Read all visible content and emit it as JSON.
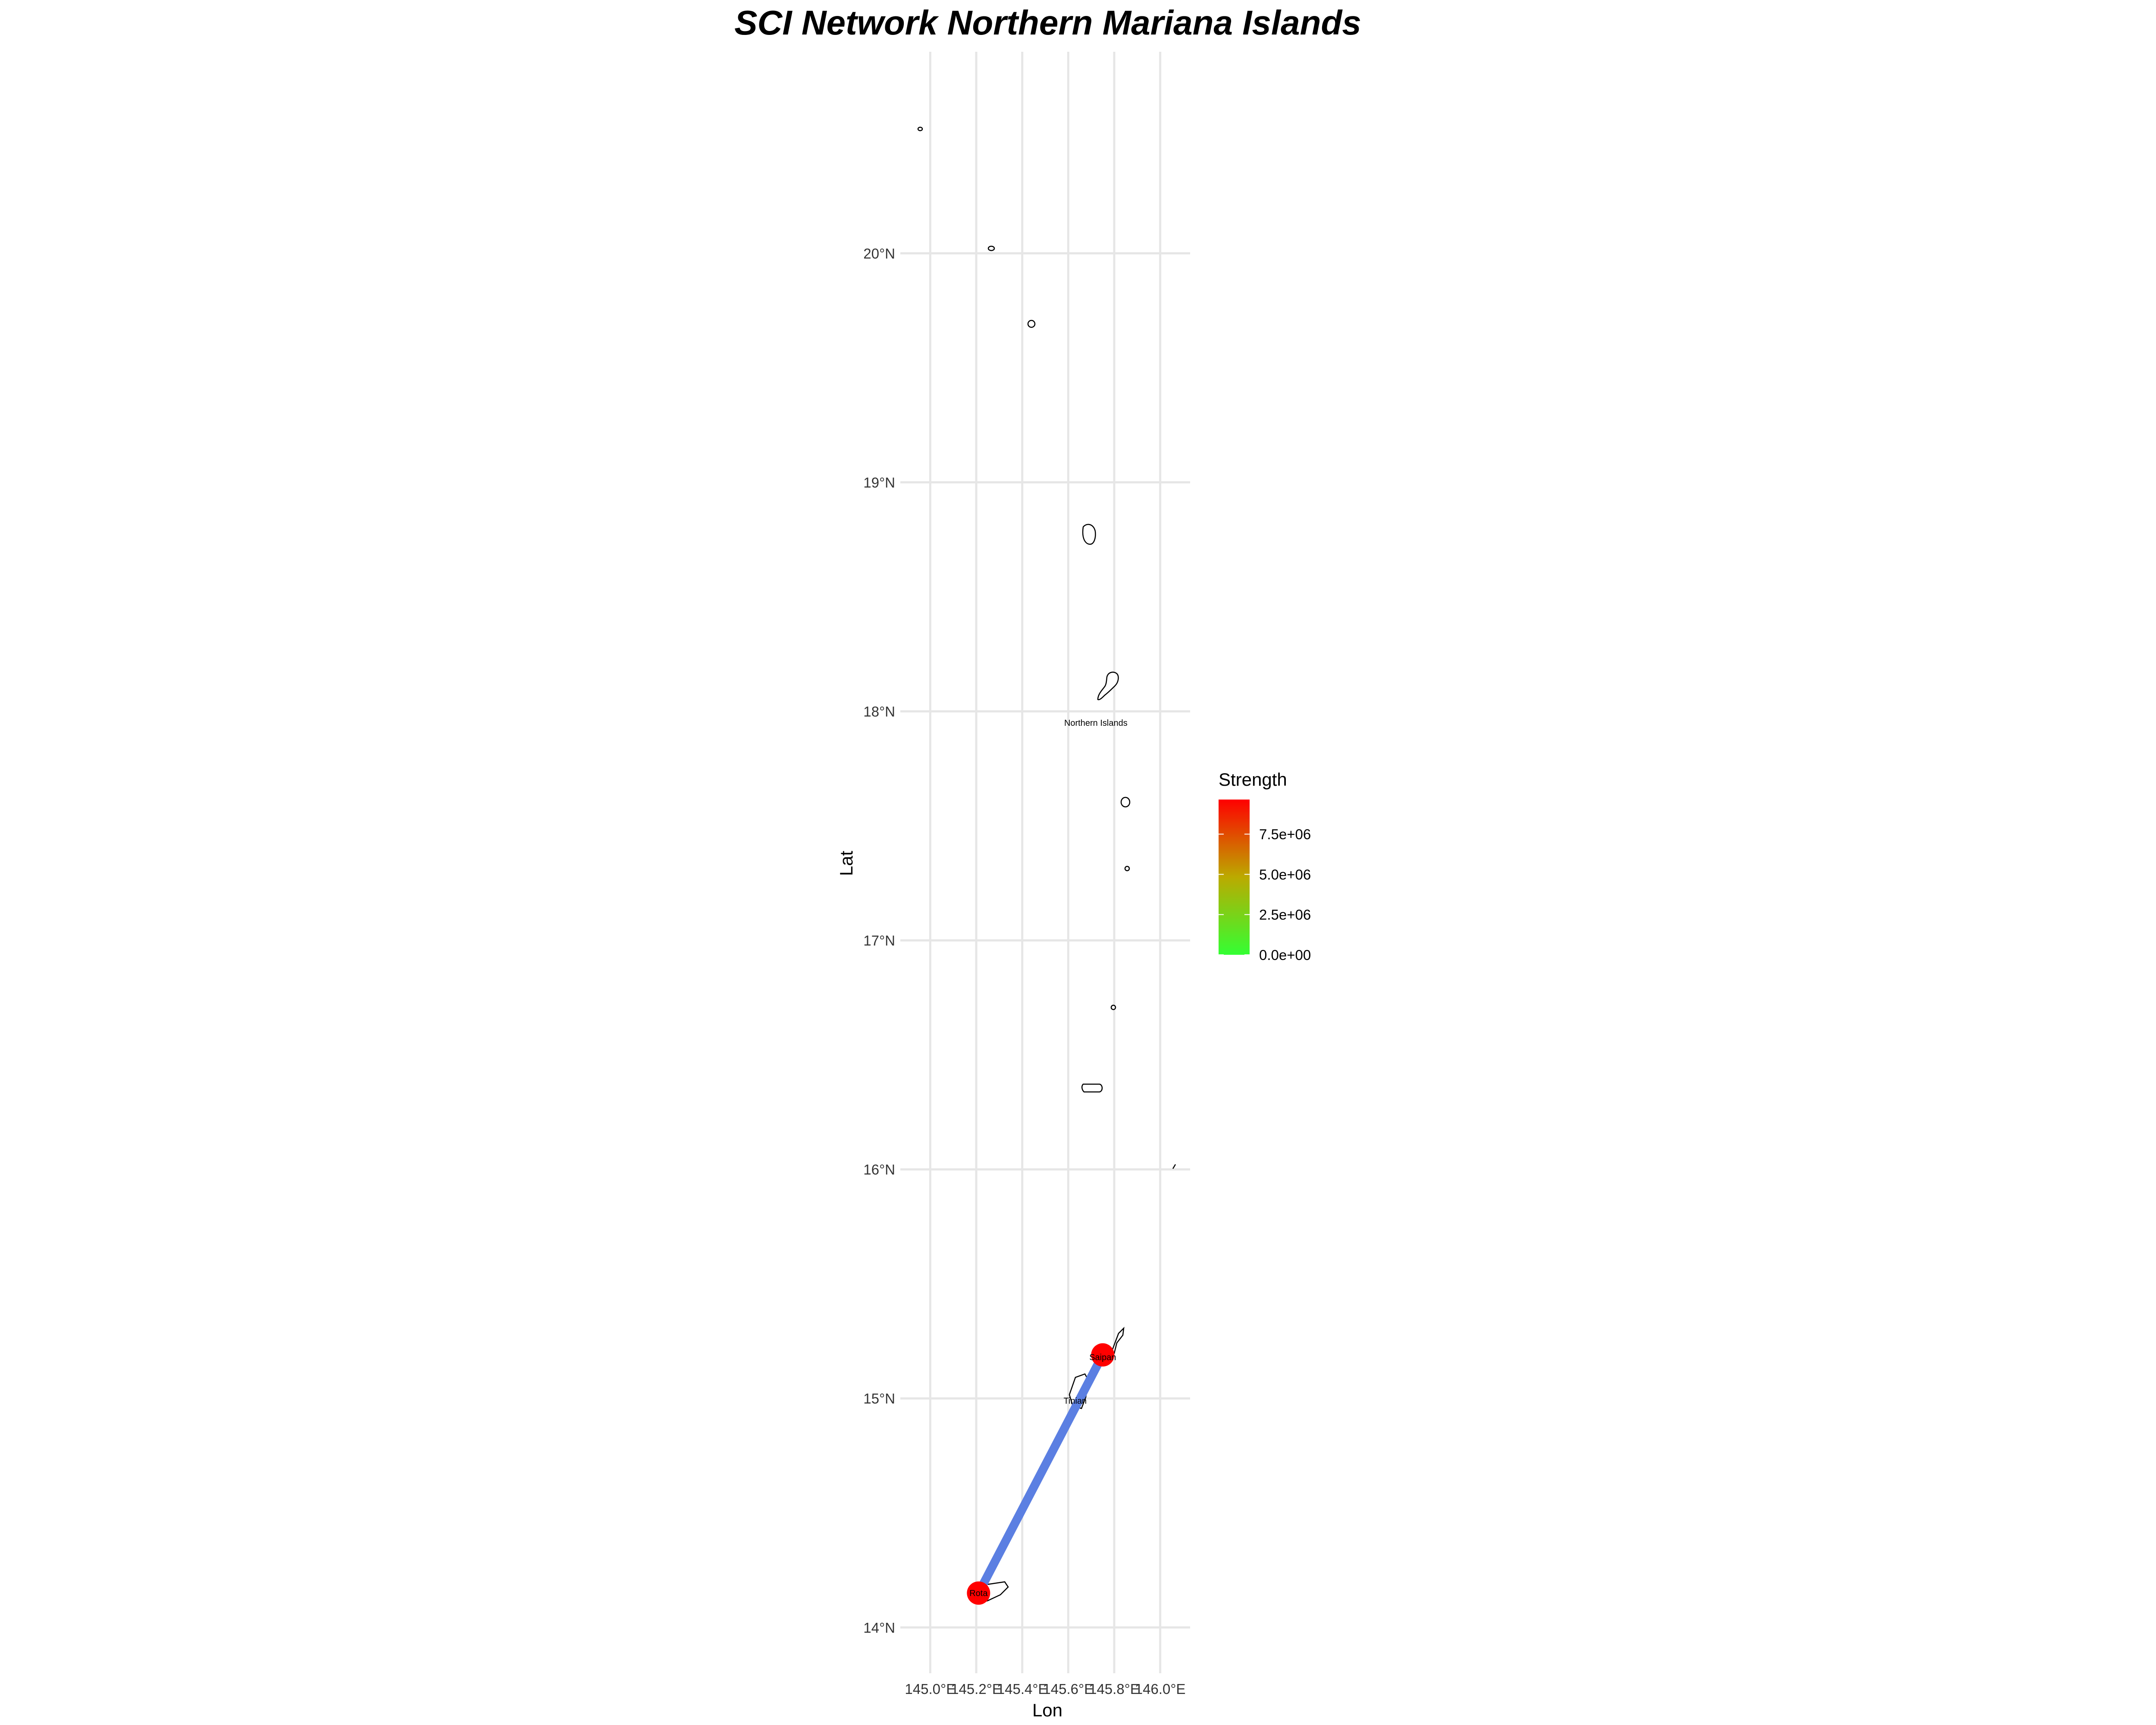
{
  "title": "SCI Network Northern Mariana Islands",
  "chart_data": {
    "type": "map",
    "title": "SCI Network Northern Mariana Islands",
    "xlabel": "Lon",
    "ylabel": "Lat",
    "xlim": [
      144.87,
      146.13
    ],
    "ylim": [
      13.8,
      20.88
    ],
    "x_ticks": [
      {
        "value": 145.0,
        "label": "145.0°E"
      },
      {
        "value": 145.2,
        "label": "145.2°E"
      },
      {
        "value": 145.4,
        "label": "145.4°E"
      },
      {
        "value": 145.6,
        "label": "145.6°E"
      },
      {
        "value": 145.8,
        "label": "145.8°E"
      },
      {
        "value": 146.0,
        "label": "146.0°E"
      }
    ],
    "y_ticks": [
      {
        "value": 14,
        "label": "14°N"
      },
      {
        "value": 15,
        "label": "15°N"
      },
      {
        "value": 16,
        "label": "16°N"
      },
      {
        "value": 17,
        "label": "17°N"
      },
      {
        "value": 18,
        "label": "18°N"
      },
      {
        "value": 19,
        "label": "19°N"
      },
      {
        "value": 20,
        "label": "20°N"
      }
    ],
    "regions": [
      {
        "name": "Northern Islands",
        "label_lon": 145.72,
        "label_lat": 17.95
      },
      {
        "name": "Saipan",
        "label_lon": 145.75,
        "label_lat": 15.18
      },
      {
        "name": "Tinian",
        "label_lon": 145.63,
        "label_lat": 14.99
      },
      {
        "name": "Rota",
        "label_lon": 145.21,
        "label_lat": 14.15
      }
    ],
    "nodes": [
      {
        "name": "Saipan",
        "lon": 145.75,
        "lat": 15.19
      },
      {
        "name": "Rota",
        "lon": 145.21,
        "lat": 14.15
      }
    ],
    "edges": [
      {
        "from": "Rota",
        "to": "Saipan",
        "color": "#5b7fe2"
      }
    ],
    "legend": {
      "title": "Strength",
      "position": "right",
      "min": 0,
      "max": 9650000,
      "low_color": "#33ff33",
      "high_color": "#ff0000",
      "ticks": [
        {
          "value": 0,
          "label": "0.0e+00"
        },
        {
          "value": 2500000,
          "label": "2.5e+06"
        },
        {
          "value": 5000000,
          "label": "5.0e+06"
        },
        {
          "value": 7500000,
          "label": "7.5e+06"
        }
      ]
    }
  },
  "colors": {
    "edge": "#5b7fe2",
    "node": "#ff0000",
    "grid": "#e6e6e6",
    "coast": "#000000"
  }
}
